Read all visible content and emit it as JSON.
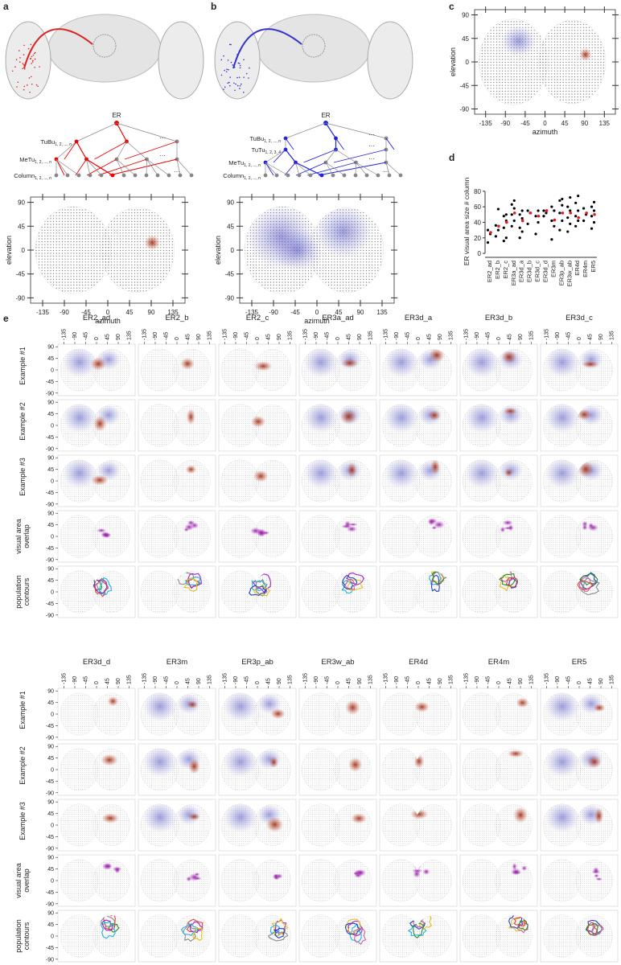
{
  "panel_labels": [
    "a",
    "b",
    "c",
    "d",
    "e"
  ],
  "map_axes": {
    "xlim": [
      -160,
      160
    ],
    "ylim": [
      -100,
      100
    ],
    "xticks": [
      -135,
      -90,
      -45,
      0,
      45,
      90,
      135
    ],
    "yticks": [
      90,
      45,
      0,
      -45,
      -90
    ],
    "xlabel": "azimuth",
    "ylabel": "elevation"
  },
  "tree_a": {
    "root": "ER",
    "levels": [
      {
        "name": "TuBu",
        "sub": "1, 2, ..., n"
      },
      {
        "name": "MeTu",
        "sub": "1, 2, ..., n"
      },
      {
        "name": "Column",
        "sub": "1, 2, ..., n"
      }
    ],
    "ellipsis": "···"
  },
  "tree_b": {
    "root": "ER",
    "levels": [
      {
        "name": "TuBu",
        "sub": "1, 2, ..., n"
      },
      {
        "name": "TuTu",
        "sub": "1, 2, 3, 4"
      },
      {
        "name": "MeTu",
        "sub": "1, 2, ..., n"
      },
      {
        "name": "Column",
        "sub": "1, 2, ..., n"
      }
    ],
    "ellipsis": "···"
  },
  "panel_d": {
    "ylabel": "ER visual area size # column",
    "categories": [
      "ER2_ad",
      "ER2_b",
      "ER2_c",
      "ER3a_ad",
      "ER3d_a",
      "ER3d_b",
      "ER3d_c",
      "ER3d_d",
      "ER3m",
      "ER3p_ab",
      "ER3w_ab",
      "ER4d",
      "ER4m",
      "ER5"
    ],
    "points": [
      [
        14,
        25,
        30
      ],
      [
        22,
        30,
        36,
        57
      ],
      [
        16,
        20,
        33,
        42,
        48,
        50
      ],
      [
        35,
        42,
        50,
        58,
        63,
        68
      ],
      [
        20,
        28,
        33,
        45,
        50,
        55
      ],
      [
        38,
        52,
        55
      ],
      [
        25,
        40,
        48,
        55
      ],
      [
        48,
        52,
        55
      ],
      [
        18,
        35,
        42,
        55,
        60
      ],
      [
        30,
        42,
        52,
        62,
        68,
        70
      ],
      [
        28,
        38,
        46,
        55,
        60,
        72
      ],
      [
        35,
        42,
        48,
        55,
        65,
        74
      ],
      [
        42,
        50,
        58
      ],
      [
        32,
        40,
        48,
        55,
        60,
        66
      ]
    ],
    "means": [
      27,
      35,
      40,
      52,
      42,
      52,
      48,
      55,
      43,
      52,
      52,
      46,
      52,
      50
    ],
    "ylim": [
      -3,
      85
    ],
    "yticks": [
      0,
      20,
      40,
      60,
      80
    ],
    "point_color": "#000000",
    "mean_color": "#e41a1c"
  },
  "panel_e": {
    "row_labels": [
      "Example #1",
      "Example #2",
      "Example #3",
      "visual area overlap",
      "population contours"
    ],
    "groups": [
      [
        "ER2_ad",
        "ER2_b",
        "ER2_c",
        "ER3a_ad",
        "ER3d_a",
        "ER3d_b",
        "ER3d_c"
      ],
      [
        "ER3d_d",
        "ER3m",
        "ER3p_ab",
        "ER3w_ab",
        "ER4d",
        "ER4m",
        "ER5"
      ]
    ]
  }
}
